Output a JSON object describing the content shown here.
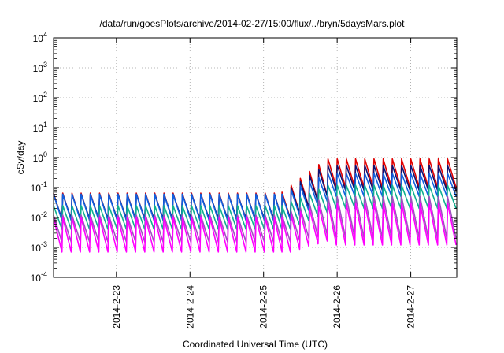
{
  "chart_data": {
    "type": "line",
    "title": "/data/run/goesPlots/archive/2014-02-27/15:00/flux/../bryn/5daysMars.plot",
    "xlabel": "Coordinated Universal Time (UTC)",
    "ylabel": "cSv/day",
    "y_scale": "log",
    "ylim": [
      0.0001,
      10000
    ],
    "xlim": [
      "2014-02-22 03:30",
      "2014-02-27 15:00"
    ],
    "grid": true,
    "legend": "none",
    "y_ticks": [
      {
        "base": "10",
        "exp": "-4"
      },
      {
        "base": "10",
        "exp": "-3"
      },
      {
        "base": "10",
        "exp": "-2"
      },
      {
        "base": "10",
        "exp": "-1"
      },
      {
        "base": "10",
        "exp": "0"
      },
      {
        "base": "10",
        "exp": "1"
      },
      {
        "base": "10",
        "exp": "2"
      },
      {
        "base": "10",
        "exp": "3"
      },
      {
        "base": "10",
        "exp": "4"
      }
    ],
    "x_ticks": [
      "2014-2-23",
      "2014-2-24",
      "2014-2-25",
      "2014-2-26",
      "2014-2-27"
    ],
    "oscillation_period_hours": 3,
    "series": [
      {
        "color": "#e00000",
        "segments": [
          {
            "x": [
              "2014-02-22 03:30",
              "2014-02-25 06:00"
            ],
            "peak": 0.065,
            "trough": 0.008
          },
          {
            "x": [
              "2014-02-25 06:00",
              "2014-02-25 21:00"
            ],
            "peak": [
              0.07,
              1.0
            ],
            "trough": [
              0.009,
              0.08
            ]
          },
          {
            "x": [
              "2014-02-25 21:00",
              "2014-02-27 15:00"
            ],
            "peak": 0.9,
            "trough": 0.1
          }
        ]
      },
      {
        "color": "#101070",
        "segments": [
          {
            "x": [
              "2014-02-22 03:30",
              "2014-02-25 06:00"
            ],
            "peak": 0.06,
            "trough": 0.009
          },
          {
            "x": [
              "2014-02-25 06:00",
              "2014-02-25 21:00"
            ],
            "peak": [
              0.06,
              0.65
            ],
            "trough": [
              0.009,
              0.08
            ]
          },
          {
            "x": [
              "2014-02-25 21:00",
              "2014-02-27 15:00"
            ],
            "peak": 0.55,
            "trough": 0.08
          }
        ]
      },
      {
        "color": "#1060e0",
        "segments": [
          {
            "x": [
              "2014-02-22 03:30",
              "2014-02-25 06:00"
            ],
            "peak": 0.06,
            "trough": 0.008
          },
          {
            "x": [
              "2014-02-25 06:00",
              "2014-02-25 21:00"
            ],
            "peak": [
              0.06,
              0.3
            ],
            "trough": [
              0.008,
              0.05
            ]
          },
          {
            "x": [
              "2014-02-25 21:00",
              "2014-02-27 15:00"
            ],
            "peak": 0.3,
            "trough": 0.05
          }
        ]
      },
      {
        "color": "#10b090",
        "segments": [
          {
            "x": [
              "2014-02-22 03:30",
              "2014-02-25 06:00"
            ],
            "peak": 0.025,
            "trough": 0.004
          },
          {
            "x": [
              "2014-02-25 06:00",
              "2014-02-25 21:00"
            ],
            "peak": [
              0.025,
              0.12
            ],
            "trough": [
              0.004,
              0.02
            ]
          },
          {
            "x": [
              "2014-02-25 21:00",
              "2014-02-27 15:00"
            ],
            "peak": 0.12,
            "trough": 0.02
          }
        ]
      },
      {
        "color": "#a050c0",
        "segments": [
          {
            "x": [
              "2014-02-22 03:30",
              "2014-02-25 06:00"
            ],
            "peak": 0.012,
            "trough": 0.0015
          },
          {
            "x": [
              "2014-02-25 06:00",
              "2014-02-25 21:00"
            ],
            "peak": [
              0.012,
              0.05
            ],
            "trough": [
              0.0015,
              0.003
            ]
          },
          {
            "x": [
              "2014-02-25 21:00",
              "2014-02-27 15:00"
            ],
            "peak": 0.05,
            "trough": 0.002
          }
        ]
      },
      {
        "color": "#ff00ff",
        "segments": [
          {
            "x": [
              "2014-02-22 03:30",
              "2014-02-25 06:00"
            ],
            "peak": 0.01,
            "trough": 0.0007
          },
          {
            "x": [
              "2014-02-25 06:00",
              "2014-02-25 21:00"
            ],
            "peak": [
              0.01,
              0.03
            ],
            "trough": [
              0.0007,
              0.002
            ]
          },
          {
            "x": [
              "2014-02-25 21:00",
              "2014-02-27 15:00"
            ],
            "peak": 0.03,
            "trough": 0.0012
          }
        ]
      }
    ]
  }
}
